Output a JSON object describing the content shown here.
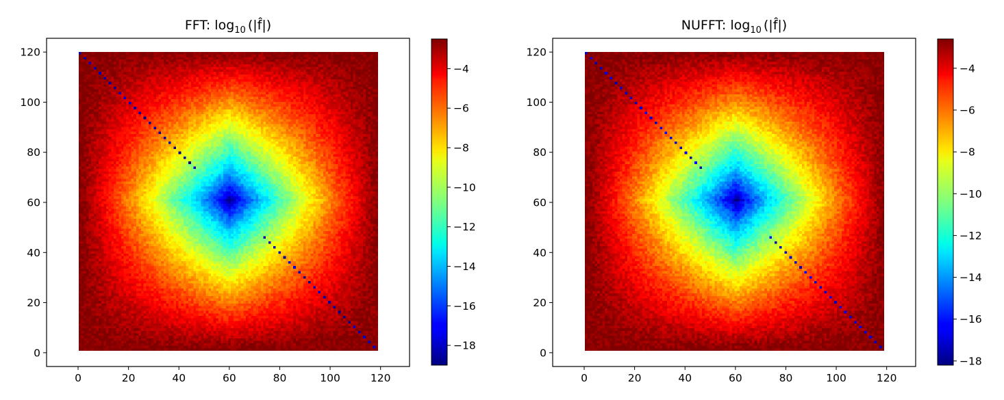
{
  "chart_data": [
    {
      "type": "heatmap",
      "title_prefix": "FFT: log",
      "title_sub": "10",
      "title_arg": "(|f̂|)",
      "x_ticks": [
        0,
        20,
        40,
        60,
        80,
        100,
        120
      ],
      "y_ticks": [
        0,
        20,
        40,
        60,
        80,
        100,
        120
      ],
      "x_tick_labels": [
        "0",
        "20",
        "40",
        "60",
        "80",
        "100",
        "120"
      ],
      "y_tick_labels": [
        "0",
        "20",
        "40",
        "60",
        "80",
        "100",
        "120"
      ],
      "xlim": [
        -12.5,
        131.5
      ],
      "ylim": [
        -5.5,
        125.5
      ],
      "grid_size": 120,
      "colormap": "jet",
      "value_range": [
        -19,
        -2.5
      ],
      "center": [
        60,
        60
      ],
      "colorbar_ticks": [
        -4,
        -6,
        -8,
        -10,
        -12,
        -14,
        -16,
        -18
      ],
      "colorbar_tick_labels": [
        "−4",
        "−6",
        "−8",
        "−10",
        "−12",
        "−14",
        "−16",
        "−18"
      ],
      "anti_diagonal_min": -17.5
    },
    {
      "type": "heatmap",
      "title_prefix": "NUFFT: log",
      "title_sub": "10",
      "title_arg": "(|f̂|)",
      "x_ticks": [
        0,
        20,
        40,
        60,
        80,
        100,
        120
      ],
      "y_ticks": [
        0,
        20,
        40,
        60,
        80,
        100,
        120
      ],
      "x_tick_labels": [
        "0",
        "20",
        "40",
        "60",
        "80",
        "100",
        "120"
      ],
      "y_tick_labels": [
        "0",
        "20",
        "40",
        "60",
        "80",
        "100",
        "120"
      ],
      "xlim": [
        -12.5,
        131.5
      ],
      "ylim": [
        -5.5,
        125.5
      ],
      "grid_size": 120,
      "colormap": "jet",
      "value_range": [
        -18.2,
        -2.6
      ],
      "center": [
        60,
        60
      ],
      "colorbar_ticks": [
        -4,
        -6,
        -8,
        -10,
        -12,
        -14,
        -16,
        -18
      ],
      "colorbar_tick_labels": [
        "−4",
        "−6",
        "−8",
        "−10",
        "−12",
        "−14",
        "−16",
        "−18"
      ],
      "anti_diagonal_min": -16.0
    }
  ]
}
